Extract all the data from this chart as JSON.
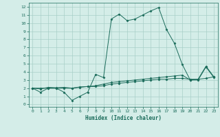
{
  "title": "",
  "xlabel": "Humidex (Indice chaleur)",
  "background_color": "#d4ede8",
  "grid_color": "#a8cfc8",
  "line_color": "#1a6b5a",
  "xlim": [
    -0.5,
    23.5
  ],
  "ylim": [
    -0.3,
    12.5
  ],
  "xticks": [
    0,
    1,
    2,
    3,
    4,
    5,
    6,
    7,
    8,
    9,
    10,
    11,
    12,
    13,
    14,
    15,
    16,
    17,
    18,
    19,
    20,
    21,
    22,
    23
  ],
  "yticks": [
    0,
    1,
    2,
    3,
    4,
    5,
    6,
    7,
    8,
    9,
    10,
    11,
    12
  ],
  "line1_x": [
    0,
    1,
    2,
    3,
    4,
    5,
    6,
    7,
    8,
    9,
    10,
    11,
    12,
    13,
    14,
    15,
    16,
    17,
    18,
    19,
    20,
    21,
    22,
    23
  ],
  "line1_y": [
    2.0,
    1.5,
    2.0,
    2.0,
    1.5,
    0.5,
    1.0,
    1.5,
    3.7,
    3.3,
    10.5,
    11.1,
    10.3,
    10.5,
    11.0,
    11.5,
    11.9,
    9.2,
    7.5,
    4.9,
    3.0,
    3.0,
    4.6,
    3.3
  ],
  "line2_x": [
    0,
    1,
    2,
    3,
    4,
    5,
    6,
    7,
    8,
    9,
    10,
    11,
    12,
    13,
    14,
    15,
    16,
    17,
    18,
    19,
    20,
    21,
    22,
    23
  ],
  "line2_y": [
    2.0,
    1.9,
    2.1,
    2.05,
    2.1,
    2.0,
    2.15,
    2.2,
    2.3,
    2.5,
    2.7,
    2.8,
    2.9,
    3.0,
    3.1,
    3.2,
    3.3,
    3.4,
    3.5,
    3.6,
    3.0,
    3.1,
    4.7,
    3.4
  ],
  "line3_x": [
    0,
    1,
    2,
    3,
    4,
    5,
    6,
    7,
    8,
    9,
    10,
    11,
    12,
    13,
    14,
    15,
    16,
    17,
    18,
    19,
    20,
    21,
    22,
    23
  ],
  "line3_y": [
    2.0,
    2.0,
    2.0,
    2.0,
    2.0,
    2.0,
    2.1,
    2.2,
    2.2,
    2.3,
    2.5,
    2.6,
    2.7,
    2.8,
    2.9,
    3.0,
    3.1,
    3.1,
    3.2,
    3.2,
    3.1,
    3.1,
    3.2,
    3.4
  ],
  "xlabel_fontsize": 5.5,
  "tick_fontsize": 4.5
}
